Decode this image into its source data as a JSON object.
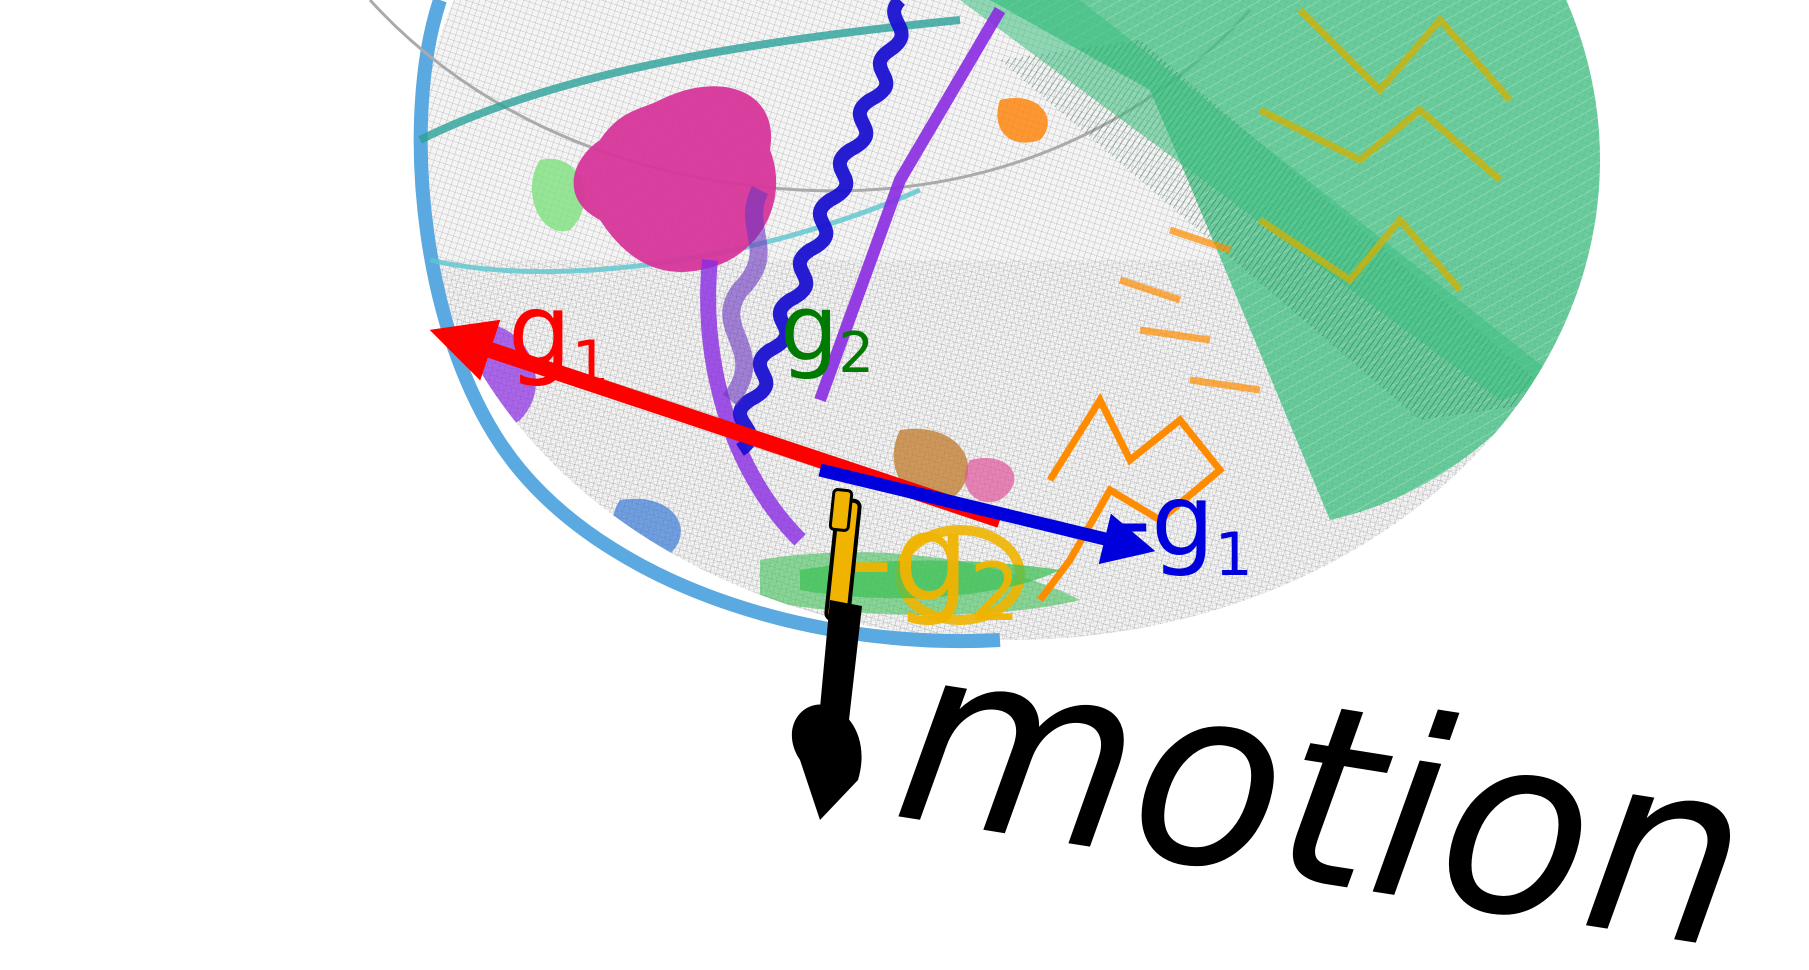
{
  "labels": {
    "g1": "g",
    "g1_sub": "1",
    "g2": "g",
    "g2_sub": "2",
    "neg_g1": "-g",
    "neg_g1_sub": "1",
    "neg_g2": "-g",
    "neg_g2_sub": "2",
    "motion": "motion"
  },
  "colors": {
    "sphere_green": "#3cbf80",
    "grid": "#333333",
    "red_vector": "#ff0000",
    "blue_vector": "#0000dd",
    "green_label": "#007a00",
    "orange": "#ff8c00",
    "purple": "#8a2be2",
    "magenta": "#d6359a",
    "teal": "#2aa198",
    "sky_blue": "#5aa9e0",
    "yellow_gold": "#f0b400",
    "black": "#000000"
  },
  "icons": {
    "pen": "pen-icon"
  }
}
